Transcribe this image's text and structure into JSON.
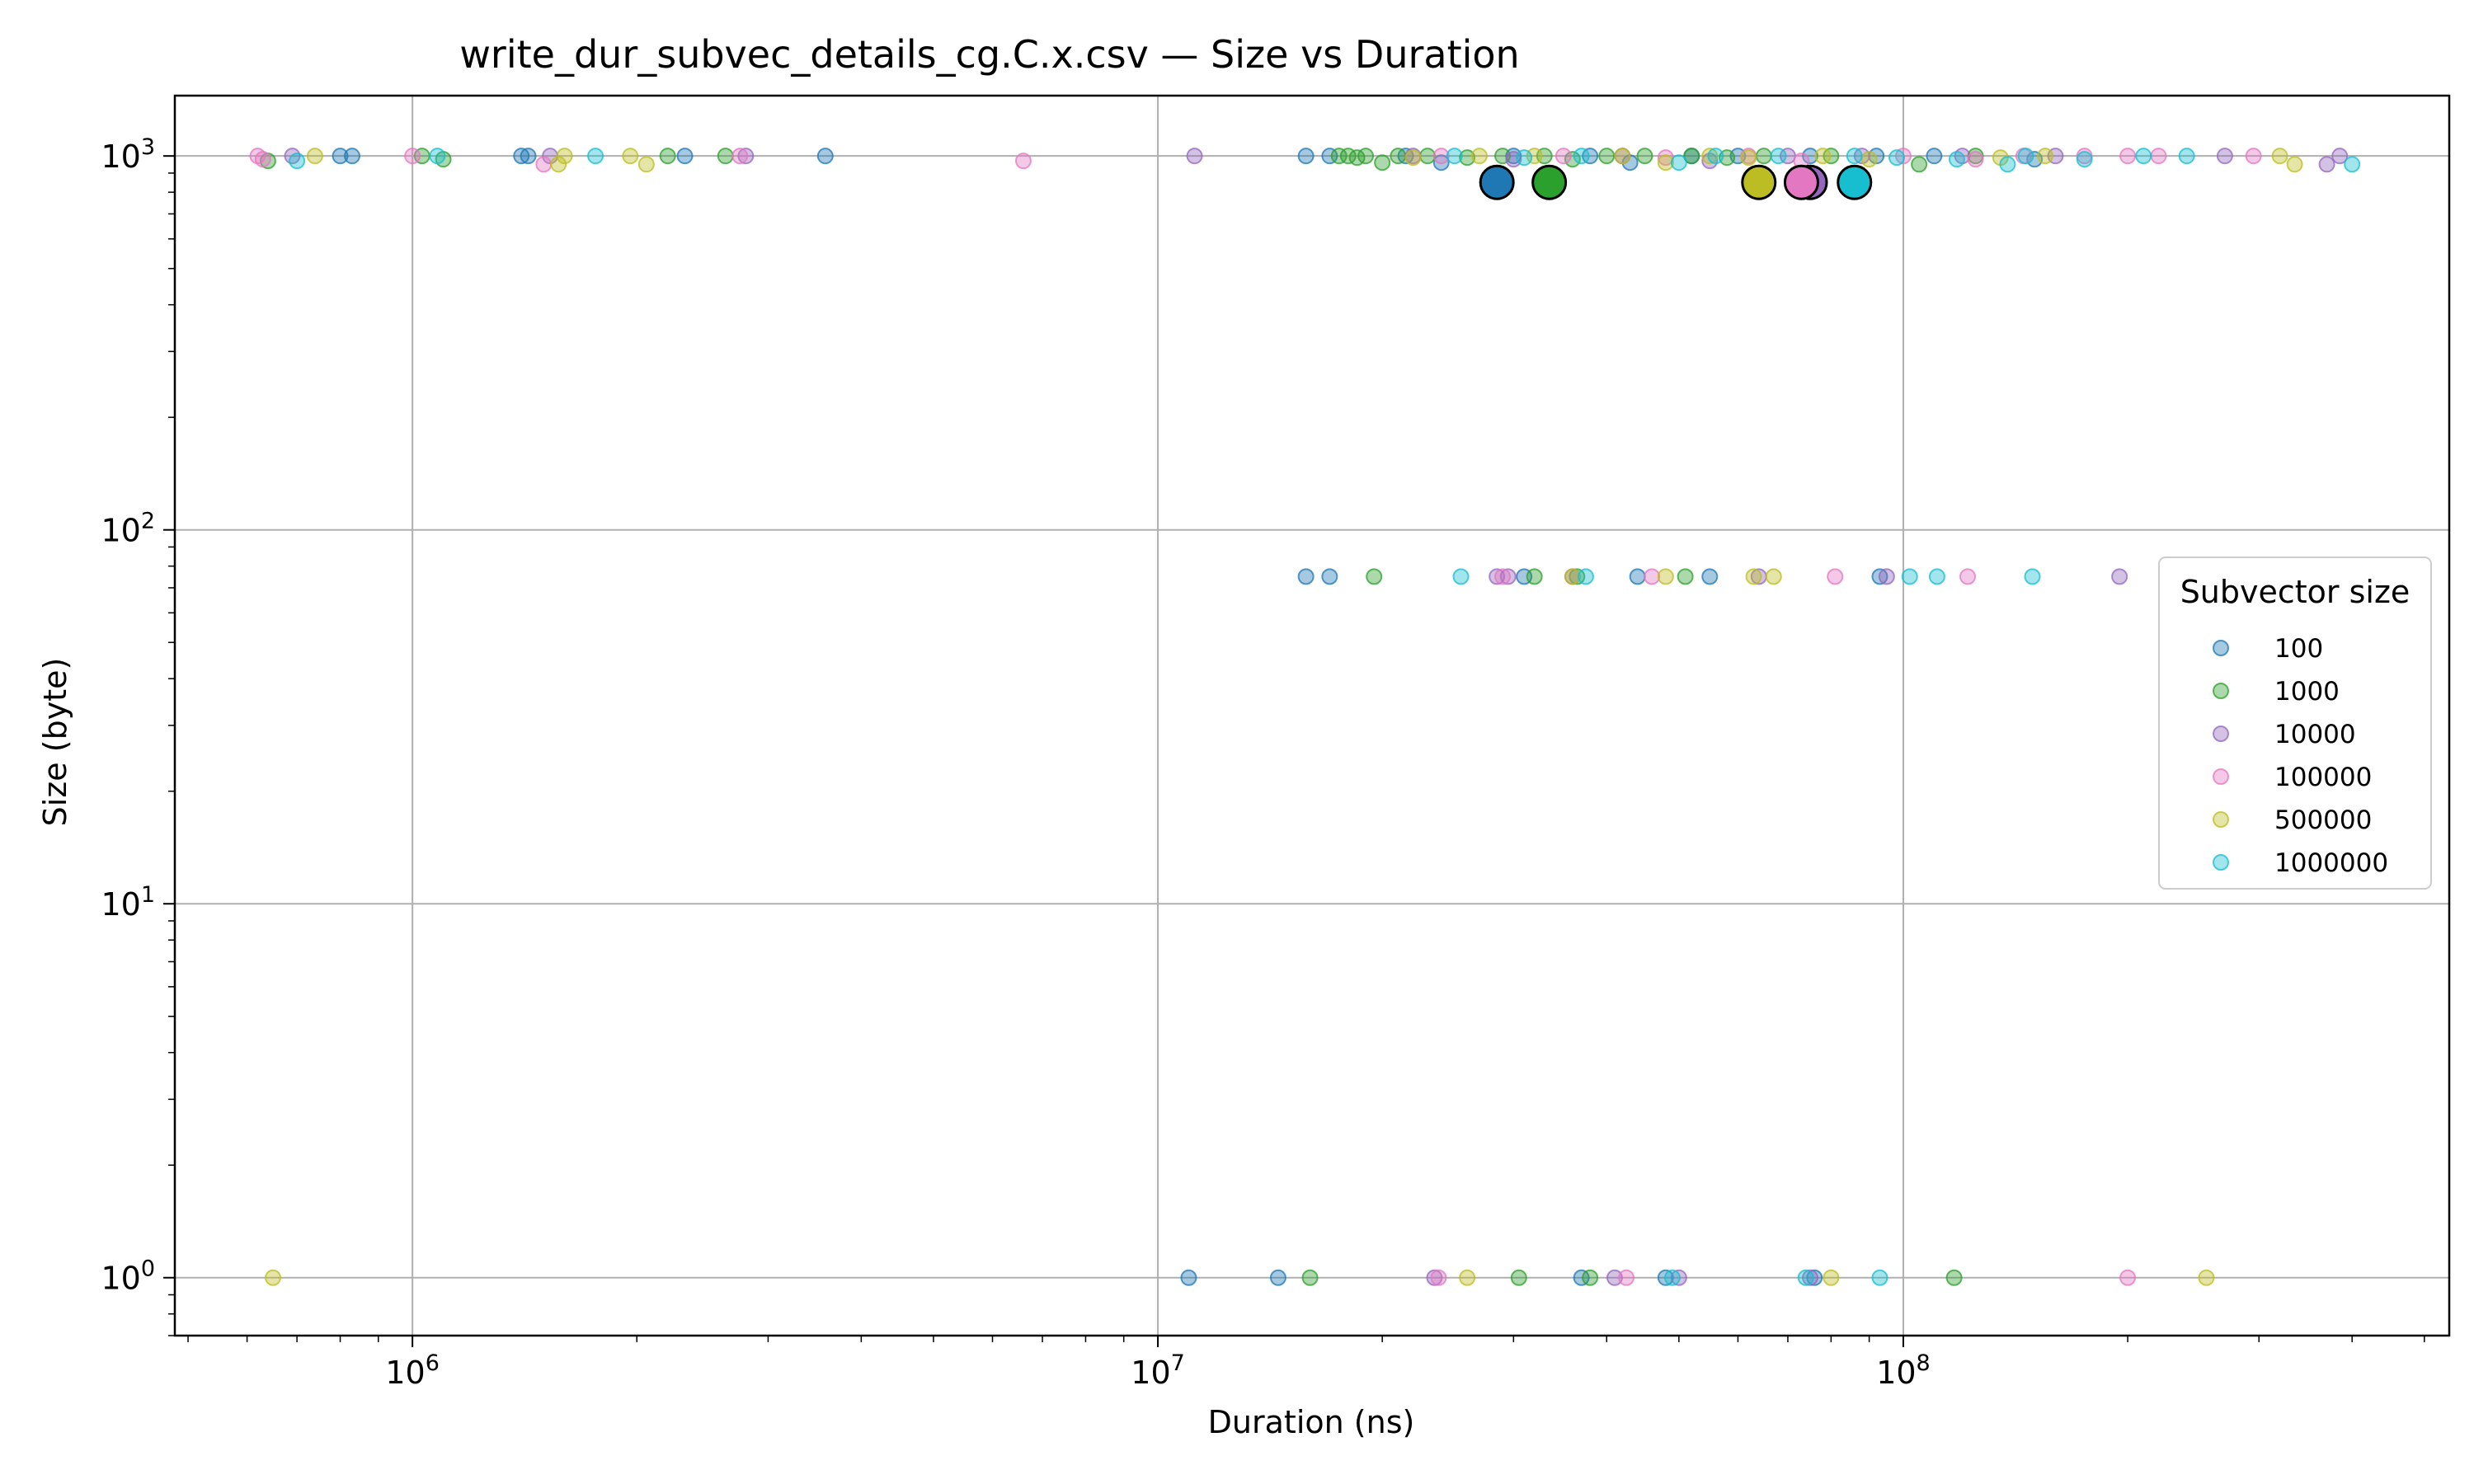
{
  "chart_data": {
    "type": "scatter",
    "title": "write_dur_subvec_details_cg.C.x.csv — Size vs Duration",
    "xlabel": "Duration (ns)",
    "ylabel": "Size (byte)",
    "xscale": "log",
    "yscale": "log",
    "xlim": [
      480000,
      540000000
    ],
    "ylim": [
      0.7,
      1450
    ],
    "xticks": [
      {
        "value": 1000000,
        "base": "10",
        "exp": "6"
      },
      {
        "value": 10000000,
        "base": "10",
        "exp": "7"
      },
      {
        "value": 100000000,
        "base": "10",
        "exp": "8"
      }
    ],
    "yticks": [
      {
        "value": 1,
        "base": "10",
        "exp": "0"
      },
      {
        "value": 10,
        "base": "10",
        "exp": "1"
      },
      {
        "value": 100,
        "base": "10",
        "exp": "2"
      },
      {
        "value": 1000,
        "base": "10",
        "exp": "3"
      }
    ],
    "grid": true,
    "legend": {
      "title": "Subvector size",
      "placement": "center-right"
    },
    "series": [
      {
        "name": "100",
        "color": "#1f77b4",
        "points": [
          [
            800000,
            1000
          ],
          [
            830000,
            1000
          ],
          [
            1400000,
            1000
          ],
          [
            1430000,
            1000
          ],
          [
            2320000,
            1000
          ],
          [
            3580000,
            1000
          ],
          [
            15800000,
            1000
          ],
          [
            17000000,
            1000
          ],
          [
            21500000,
            1000
          ],
          [
            24000000,
            960
          ],
          [
            30000000,
            1000
          ],
          [
            38000000,
            1000
          ],
          [
            43000000,
            960
          ],
          [
            52000000,
            1000
          ],
          [
            60000000,
            1000
          ],
          [
            75000000,
            1000
          ],
          [
            92000000,
            1000
          ],
          [
            110000000,
            1000
          ],
          [
            150000000,
            980
          ],
          [
            15800000,
            75
          ],
          [
            17000000,
            75
          ],
          [
            31000000,
            75
          ],
          [
            44000000,
            75
          ],
          [
            55000000,
            75
          ],
          [
            93000000,
            75
          ],
          [
            11000000,
            1
          ],
          [
            14500000,
            1
          ],
          [
            37000000,
            1
          ],
          [
            48000000,
            1
          ],
          [
            76000000,
            1
          ]
        ],
        "mean": [
          28500000,
          850
        ]
      },
      {
        "name": "1000",
        "color": "#2ca02c",
        "points": [
          [
            640000,
            970
          ],
          [
            1030000,
            1000
          ],
          [
            1100000,
            980
          ],
          [
            2200000,
            1000
          ],
          [
            2630000,
            1000
          ],
          [
            17500000,
            1000
          ],
          [
            18000000,
            1000
          ],
          [
            18500000,
            990
          ],
          [
            19000000,
            1000
          ],
          [
            20000000,
            960
          ],
          [
            21000000,
            1000
          ],
          [
            23000000,
            1000
          ],
          [
            26000000,
            990
          ],
          [
            29000000,
            1000
          ],
          [
            33000000,
            1000
          ],
          [
            36000000,
            980
          ],
          [
            40000000,
            1000
          ],
          [
            45000000,
            1000
          ],
          [
            52000000,
            1000
          ],
          [
            58000000,
            990
          ],
          [
            65000000,
            1000
          ],
          [
            80000000,
            1000
          ],
          [
            105000000,
            950
          ],
          [
            125000000,
            1000
          ],
          [
            19500000,
            75
          ],
          [
            32000000,
            75
          ],
          [
            36500000,
            75
          ],
          [
            51000000,
            75
          ],
          [
            16000000,
            1
          ],
          [
            30500000,
            1
          ],
          [
            38000000,
            1
          ],
          [
            117000000,
            1
          ]
        ],
        "mean": [
          33500000,
          850
        ]
      },
      {
        "name": "10000",
        "color": "#9467bd",
        "points": [
          [
            690000,
            1000
          ],
          [
            1530000,
            1000
          ],
          [
            2800000,
            1000
          ],
          [
            11200000,
            1000
          ],
          [
            22000000,
            1000
          ],
          [
            30000000,
            980
          ],
          [
            42000000,
            1000
          ],
          [
            55000000,
            970
          ],
          [
            70000000,
            1000
          ],
          [
            88000000,
            1000
          ],
          [
            120000000,
            1000
          ],
          [
            160000000,
            1000
          ],
          [
            270000000,
            1000
          ],
          [
            370000000,
            950
          ],
          [
            385000000,
            1000
          ],
          [
            28500000,
            75
          ],
          [
            29500000,
            75
          ],
          [
            36000000,
            75
          ],
          [
            64000000,
            75
          ],
          [
            95000000,
            75
          ],
          [
            195000000,
            75
          ],
          [
            23500000,
            1
          ],
          [
            41000000,
            1
          ],
          [
            50000000,
            1
          ],
          [
            75000000,
            1
          ]
        ],
        "mean": [
          75000000,
          850
        ]
      },
      {
        "name": "100000",
        "color": "#e377c2",
        "points": [
          [
            620000,
            1000
          ],
          [
            630000,
            980
          ],
          [
            1000000,
            1000
          ],
          [
            1500000,
            950
          ],
          [
            2750000,
            1000
          ],
          [
            6600000,
            970
          ],
          [
            24000000,
            1000
          ],
          [
            35000000,
            1000
          ],
          [
            48000000,
            990
          ],
          [
            62000000,
            1000
          ],
          [
            73000000,
            970
          ],
          [
            100000000,
            1000
          ],
          [
            125000000,
            980
          ],
          [
            145000000,
            1000
          ],
          [
            175000000,
            1000
          ],
          [
            200000000,
            1000
          ],
          [
            220000000,
            1000
          ],
          [
            295000000,
            1000
          ],
          [
            29000000,
            75
          ],
          [
            46000000,
            75
          ],
          [
            81000000,
            75
          ],
          [
            122000000,
            75
          ],
          [
            23800000,
            1
          ],
          [
            42500000,
            1
          ],
          [
            200000000,
            1
          ]
        ],
        "mean": [
          73000000,
          850
        ]
      },
      {
        "name": "500000",
        "color": "#bcbd22",
        "points": [
          [
            740000,
            1000
          ],
          [
            1570000,
            950
          ],
          [
            1600000,
            1000
          ],
          [
            1960000,
            1000
          ],
          [
            2060000,
            950
          ],
          [
            22000000,
            990
          ],
          [
            27000000,
            1000
          ],
          [
            32000000,
            1000
          ],
          [
            42000000,
            1000
          ],
          [
            48000000,
            960
          ],
          [
            55000000,
            1000
          ],
          [
            62000000,
            990
          ],
          [
            78000000,
            1000
          ],
          [
            90000000,
            980
          ],
          [
            135000000,
            990
          ],
          [
            155000000,
            1000
          ],
          [
            320000000,
            1000
          ],
          [
            335000000,
            950
          ],
          [
            36000000,
            75
          ],
          [
            48000000,
            75
          ],
          [
            63000000,
            75
          ],
          [
            67000000,
            75
          ],
          [
            650000,
            1
          ],
          [
            26000000,
            1
          ],
          [
            80000000,
            1
          ],
          [
            255000000,
            1
          ]
        ],
        "mean": [
          64000000,
          850
        ]
      },
      {
        "name": "1000000",
        "color": "#17becf",
        "points": [
          [
            700000,
            970
          ],
          [
            1080000,
            1000
          ],
          [
            1760000,
            1000
          ],
          [
            25000000,
            1000
          ],
          [
            31000000,
            990
          ],
          [
            37000000,
            1000
          ],
          [
            50000000,
            960
          ],
          [
            56000000,
            1000
          ],
          [
            68000000,
            1000
          ],
          [
            86000000,
            1000
          ],
          [
            98000000,
            990
          ],
          [
            118000000,
            980
          ],
          [
            138000000,
            950
          ],
          [
            146000000,
            1000
          ],
          [
            175000000,
            980
          ],
          [
            210000000,
            1000
          ],
          [
            240000000,
            1000
          ],
          [
            400000000,
            950
          ],
          [
            25500000,
            75
          ],
          [
            37500000,
            75
          ],
          [
            102000000,
            75
          ],
          [
            111000000,
            75
          ],
          [
            149000000,
            75
          ],
          [
            49000000,
            1
          ],
          [
            74000000,
            1
          ],
          [
            93000000,
            1
          ]
        ],
        "mean": [
          86000000,
          850
        ]
      }
    ]
  }
}
